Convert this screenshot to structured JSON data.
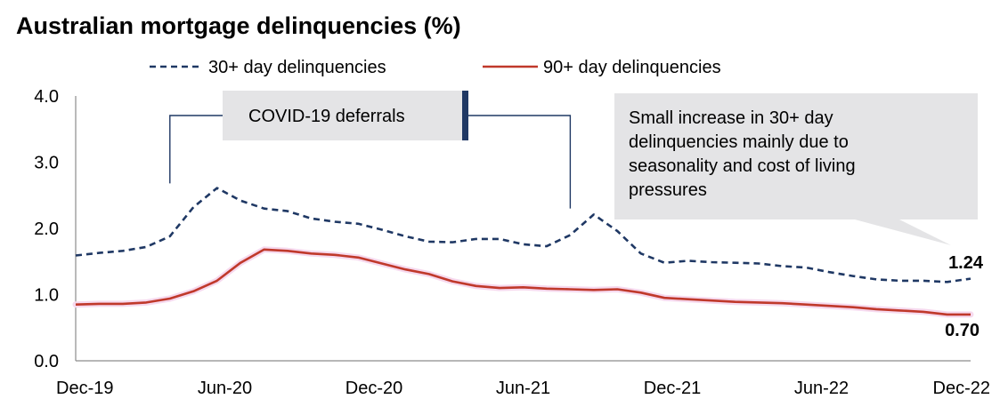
{
  "title": "Australian mortgage delinquencies (%)",
  "chart_data": {
    "type": "line",
    "title": "Australian mortgage delinquencies (%)",
    "x_tick_labels": [
      "Dec-19",
      "Jun-20",
      "Dec-20",
      "Jun-21",
      "Dec-21",
      "Jun-22",
      "Dec-22"
    ],
    "y_tick_labels": [
      "0.0",
      "1.0",
      "2.0",
      "3.0",
      "4.0"
    ],
    "ylim": [
      0,
      4
    ],
    "grid": false,
    "legend_position": "top",
    "series": [
      {
        "name": "30+ day delinquencies",
        "color": "#1f3864",
        "style": "dashed",
        "values": [
          1.59,
          1.63,
          1.66,
          1.72,
          1.88,
          2.32,
          2.61,
          2.42,
          2.3,
          2.26,
          2.15,
          2.1,
          2.07,
          1.98,
          1.88,
          1.8,
          1.79,
          1.84,
          1.84,
          1.76,
          1.73,
          1.9,
          2.21,
          1.96,
          1.62,
          1.48,
          1.51,
          1.49,
          1.48,
          1.47,
          1.43,
          1.41,
          1.34,
          1.28,
          1.23,
          1.21,
          1.21,
          1.19,
          1.24
        ]
      },
      {
        "name": "90+ day delinquencies",
        "color": "#c0392b",
        "style": "solid",
        "values": [
          0.85,
          0.86,
          0.86,
          0.88,
          0.94,
          1.05,
          1.21,
          1.48,
          1.68,
          1.66,
          1.62,
          1.6,
          1.56,
          1.47,
          1.38,
          1.31,
          1.2,
          1.13,
          1.1,
          1.11,
          1.09,
          1.08,
          1.07,
          1.08,
          1.03,
          0.95,
          0.93,
          0.91,
          0.89,
          0.88,
          0.87,
          0.85,
          0.83,
          0.81,
          0.78,
          0.76,
          0.74,
          0.7,
          0.7
        ]
      }
    ],
    "end_labels": [
      "1.24",
      "0.70"
    ],
    "annotations": [
      {
        "text": "COVID-19 deferrals",
        "type": "bracket",
        "from_period": "Apr-20",
        "to_period": "Sep-21"
      },
      {
        "lines": [
          "Small increase in 30+ day",
          "delinquencies mainly due to",
          "seasonality and cost of living",
          "pressures"
        ],
        "type": "callout",
        "points_to": "Dec-22"
      }
    ]
  },
  "colors": {
    "series_30": "#1f3864",
    "series_90": "#c0392b",
    "callout_bg": "#e4e4e6",
    "axis": "#8c8c8c"
  }
}
